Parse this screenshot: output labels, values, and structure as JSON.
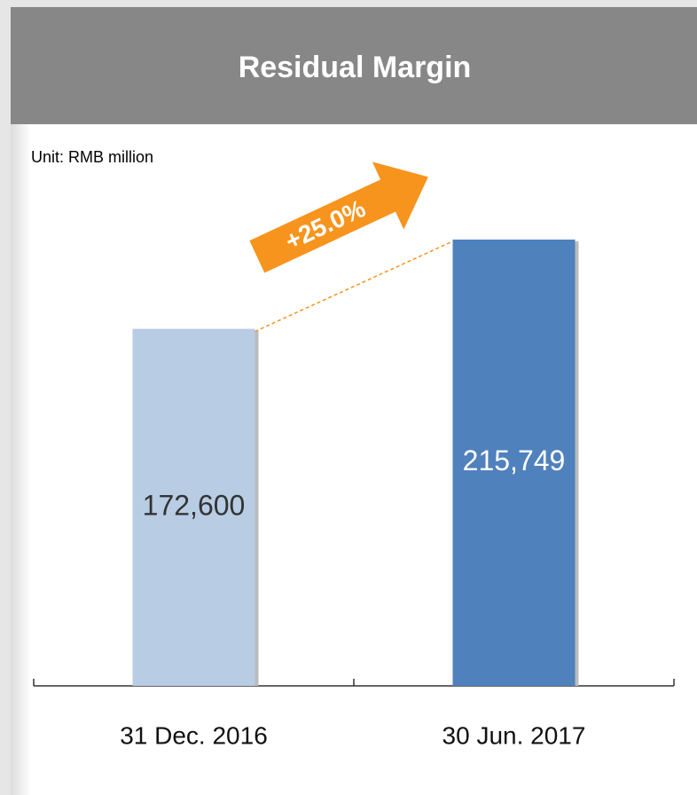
{
  "chart_data": {
    "type": "bar",
    "title": "Residual Margin",
    "subtitle": "Unit: RMB million",
    "categories": [
      "31 Dec. 2016",
      "30 Jun. 2017"
    ],
    "values": [
      172600,
      215749
    ],
    "value_labels": [
      "172,600",
      "215,749"
    ],
    "colors": [
      "#b8cce4",
      "#4f81bd"
    ],
    "label_colors": [
      "#333333",
      "#ffffff"
    ],
    "annotation": "+25.0%"
  }
}
